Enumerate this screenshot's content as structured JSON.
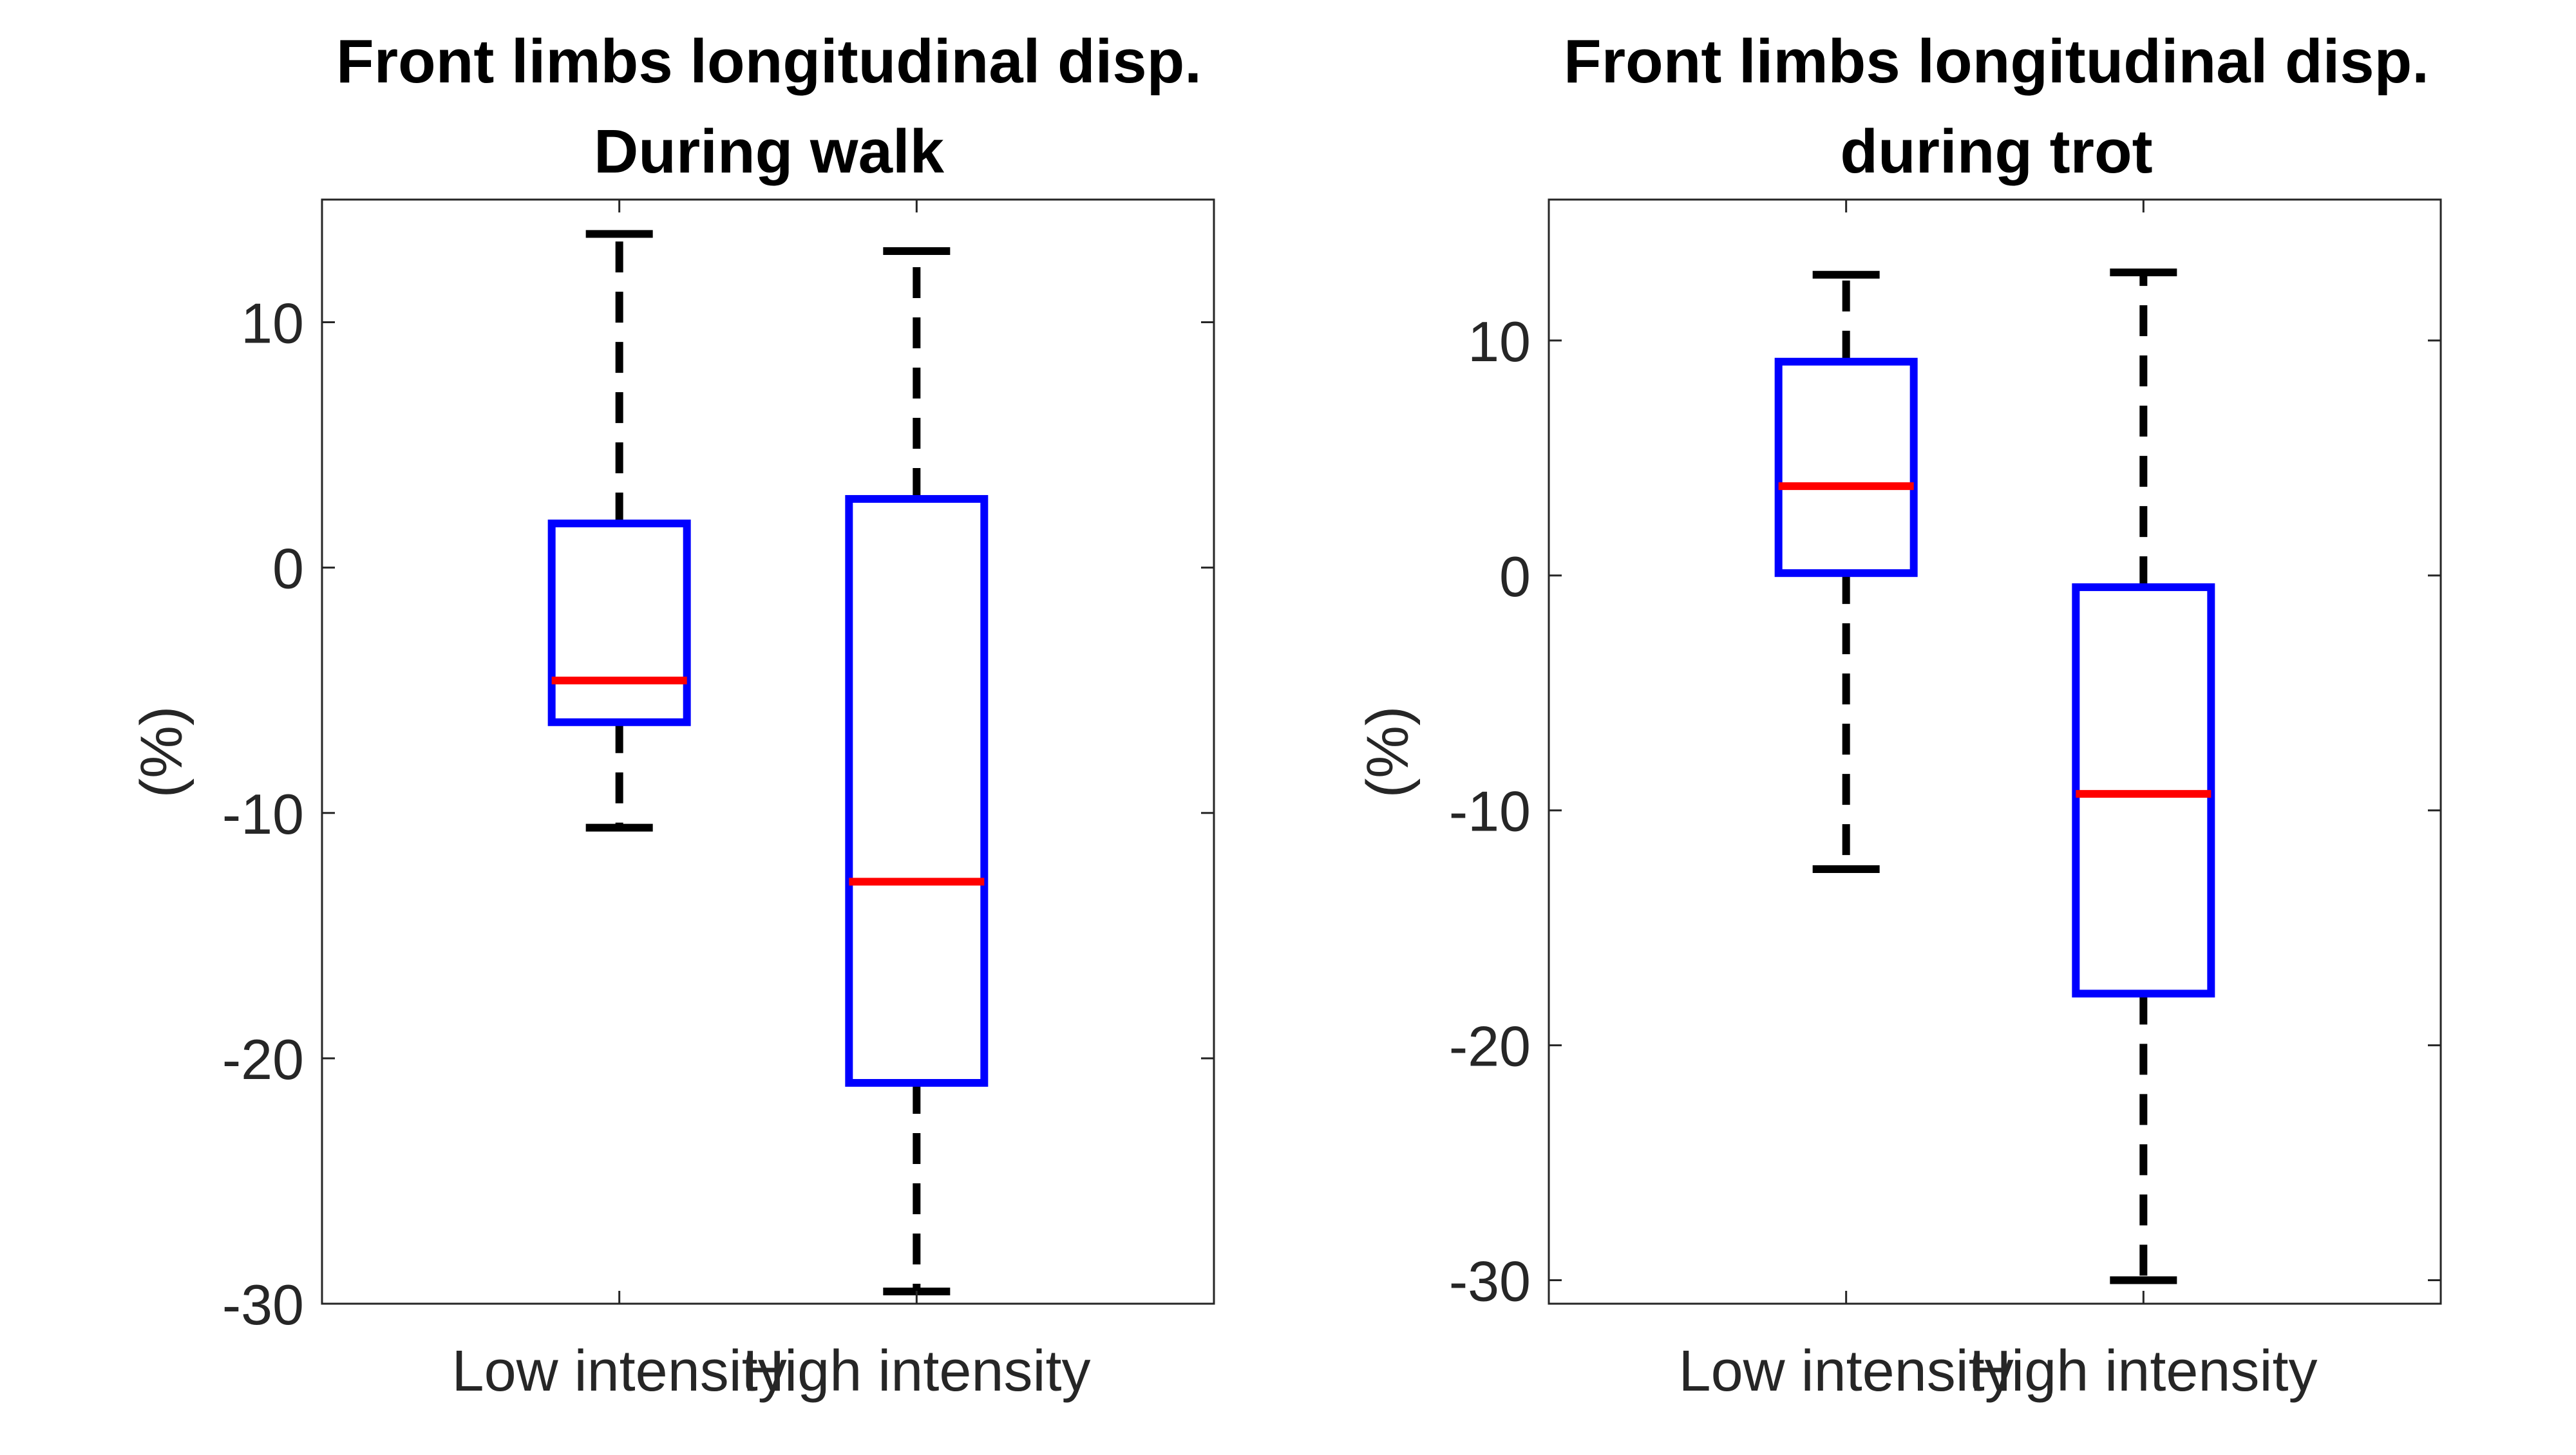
{
  "chart_data": [
    {
      "type": "box",
      "title": [
        "Front limbs longitudinal disp.",
        "During walk"
      ],
      "ylabel": "(%)",
      "ylim": [
        -30,
        15
      ],
      "yticks": [
        -30,
        -20,
        -10,
        0,
        10
      ],
      "categories": [
        "Low intensity",
        "High intensity"
      ],
      "boxes": [
        {
          "whisker_low": -10.6,
          "q1": -6.3,
          "median": -4.6,
          "q3": 1.8,
          "whisker_high": 13.6
        },
        {
          "whisker_low": -29.5,
          "q1": -21.0,
          "median": -12.8,
          "q3": 2.8,
          "whisker_high": 12.9
        }
      ]
    },
    {
      "type": "box",
      "title": [
        "Front limbs longitudinal disp.",
        "during trot"
      ],
      "ylabel": "(%)",
      "ylim": [
        -31,
        16
      ],
      "yticks": [
        -30,
        -20,
        -10,
        0,
        10
      ],
      "categories": [
        "Low intensity",
        "High intensity"
      ],
      "boxes": [
        {
          "whisker_low": -12.5,
          "q1": 0.1,
          "median": 3.8,
          "q3": 9.1,
          "whisker_high": 12.8
        },
        {
          "whisker_low": -30.0,
          "q1": -17.8,
          "median": -9.3,
          "q3": -0.5,
          "whisker_high": 12.9
        }
      ]
    }
  ],
  "colors": {
    "box": "#0000ff",
    "median": "#ff0000",
    "whisker": "#000000",
    "axis": "#262626"
  }
}
